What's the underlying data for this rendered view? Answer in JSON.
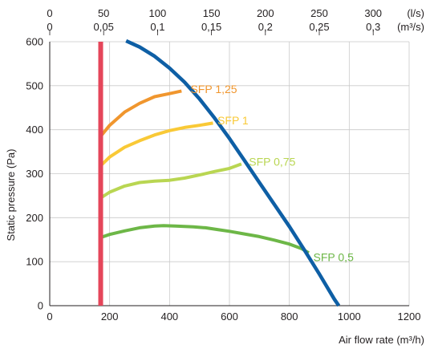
{
  "chart_data": {
    "type": "line",
    "xlabel": "Air flow rate (m³/h)",
    "ylabel": "Static pressure (Pa)",
    "xlim": [
      0,
      1200
    ],
    "ylim": [
      0,
      600
    ],
    "x_ticks": [
      0,
      200,
      400,
      600,
      800,
      1000,
      1200
    ],
    "y_ticks": [
      0,
      100,
      200,
      300,
      400,
      500,
      600
    ],
    "grid": true,
    "top_axis": {
      "unit_line1": "(l/s)",
      "unit_line2": "(m³/s)",
      "ticks": [
        {
          "x": 0,
          "ls": "0",
          "m3s": "0"
        },
        {
          "x": 180,
          "ls": "50",
          "m3s": "0,05"
        },
        {
          "x": 360,
          "ls": "100",
          "m3s": "0,1"
        },
        {
          "x": 540,
          "ls": "150",
          "m3s": "0,15"
        },
        {
          "x": 720,
          "ls": "200",
          "m3s": "0,2"
        },
        {
          "x": 900,
          "ls": "250",
          "m3s": "0,25"
        },
        {
          "x": 1080,
          "ls": "300",
          "m3s": "0,3"
        }
      ]
    },
    "series": [
      {
        "name": "SFP 1,25",
        "color": "#f0962e",
        "width": 4,
        "points": [
          [
            170,
            385
          ],
          [
            200,
            410
          ],
          [
            250,
            440
          ],
          [
            300,
            460
          ],
          [
            350,
            475
          ],
          [
            400,
            482
          ],
          [
            440,
            488
          ]
        ],
        "label_at": [
          470,
          492
        ]
      },
      {
        "name": "SFP 1",
        "color": "#f9c936",
        "width": 4,
        "points": [
          [
            170,
            318
          ],
          [
            200,
            338
          ],
          [
            250,
            360
          ],
          [
            300,
            375
          ],
          [
            350,
            388
          ],
          [
            400,
            398
          ],
          [
            450,
            405
          ],
          [
            500,
            410
          ],
          [
            545,
            415
          ]
        ],
        "label_at": [
          560,
          421
        ]
      },
      {
        "name": "SFP 0,75",
        "color": "#b9d652",
        "width": 4,
        "points": [
          [
            170,
            245
          ],
          [
            200,
            258
          ],
          [
            250,
            272
          ],
          [
            300,
            280
          ],
          [
            350,
            283
          ],
          [
            400,
            285
          ],
          [
            450,
            290
          ],
          [
            500,
            297
          ],
          [
            550,
            305
          ],
          [
            600,
            312
          ],
          [
            640,
            322
          ]
        ],
        "label_at": [
          665,
          327
        ]
      },
      {
        "name": "SFP 0,5",
        "color": "#6db747",
        "width": 4,
        "points": [
          [
            170,
            155
          ],
          [
            200,
            162
          ],
          [
            250,
            170
          ],
          [
            300,
            177
          ],
          [
            350,
            181
          ],
          [
            380,
            182
          ],
          [
            420,
            181
          ],
          [
            480,
            179
          ],
          [
            520,
            177
          ],
          [
            560,
            173
          ],
          [
            600,
            169
          ],
          [
            650,
            163
          ],
          [
            700,
            157
          ],
          [
            750,
            149
          ],
          [
            800,
            140
          ],
          [
            840,
            130
          ],
          [
            865,
            120
          ]
        ],
        "label_at": [
          880,
          110
        ]
      },
      {
        "name": "",
        "color": "#0e5fa5",
        "width": 4.5,
        "points": [
          [
            255,
            602
          ],
          [
            300,
            588
          ],
          [
            350,
            567
          ],
          [
            400,
            540
          ],
          [
            450,
            508
          ],
          [
            500,
            470
          ],
          [
            550,
            427
          ],
          [
            600,
            380
          ],
          [
            650,
            330
          ],
          [
            700,
            280
          ],
          [
            750,
            230
          ],
          [
            800,
            180
          ],
          [
            850,
            127
          ],
          [
            900,
            72
          ],
          [
            950,
            15
          ],
          [
            965,
            0
          ]
        ]
      },
      {
        "name": "",
        "color": "#e5465a",
        "width": 6,
        "points": [
          [
            170,
            0
          ],
          [
            170,
            600
          ]
        ]
      }
    ]
  }
}
